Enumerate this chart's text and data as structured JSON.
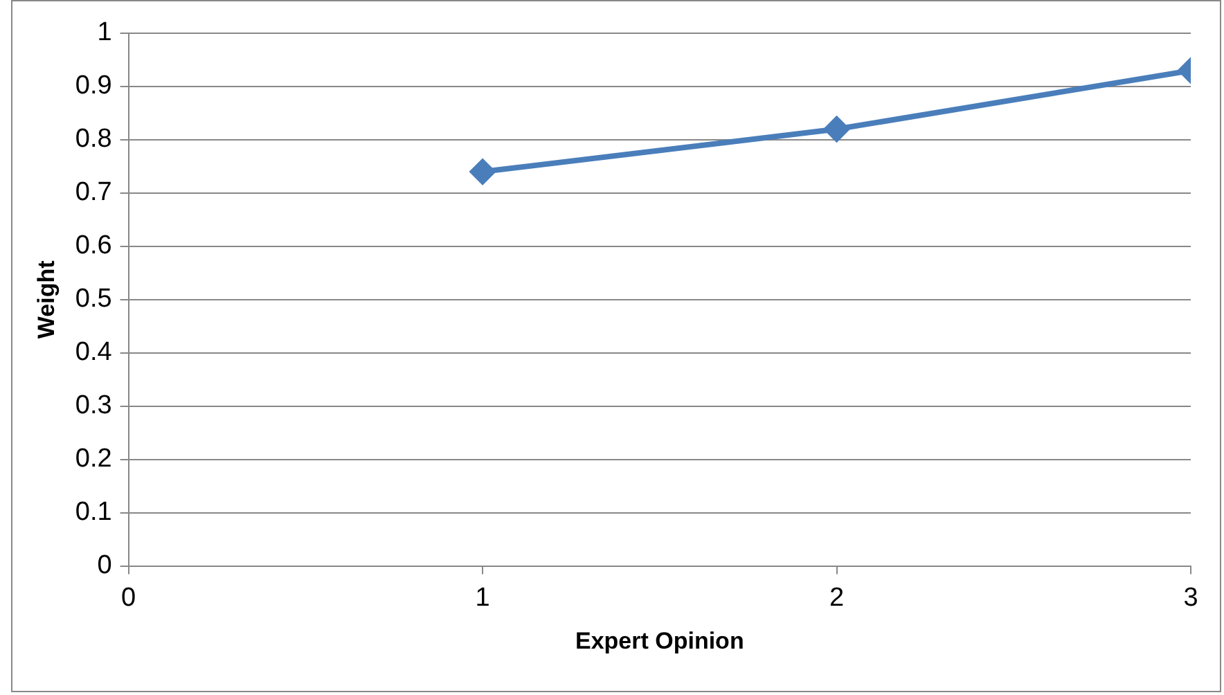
{
  "chart_data": {
    "type": "line",
    "xlabel": "Expert Opinion",
    "ylabel": "Weight",
    "x": [
      1,
      2,
      3
    ],
    "series": [
      {
        "color": "#4a7ebb",
        "values": [
          0.74,
          0.82,
          0.93
        ]
      }
    ],
    "xlim": [
      0,
      3
    ],
    "xticks": [
      0,
      1,
      2,
      3
    ],
    "ylim": [
      0,
      1
    ],
    "yticks": [
      0,
      0.1,
      0.2,
      0.3,
      0.4,
      0.5,
      0.6,
      0.7,
      0.8,
      0.9,
      1
    ],
    "grid": "y",
    "legend": false,
    "marker": "diamond",
    "line_style": "solid"
  }
}
